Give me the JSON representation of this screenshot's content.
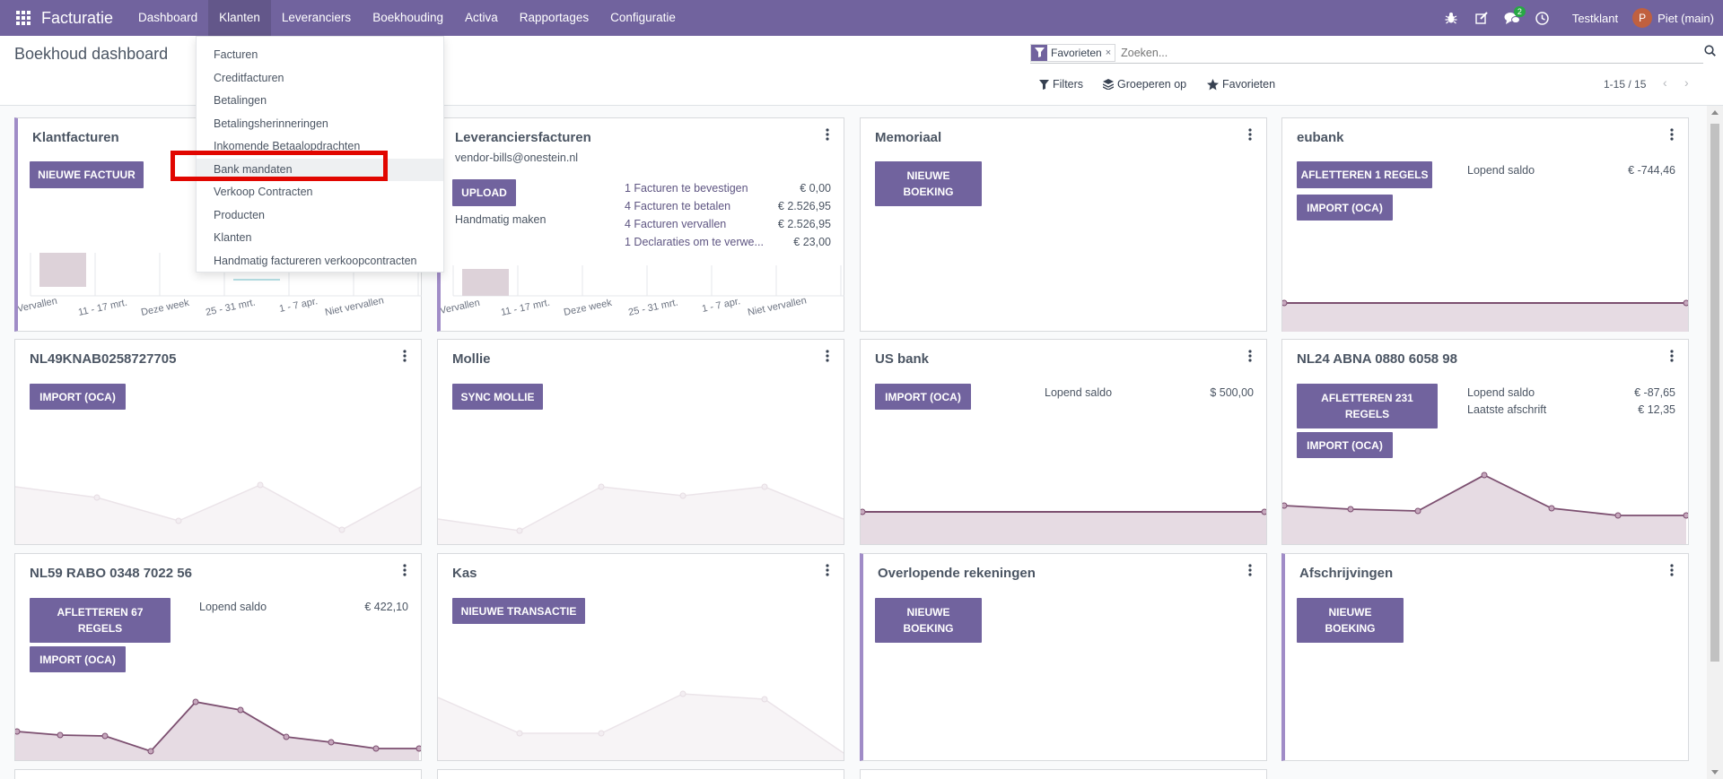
{
  "navbar": {
    "app_name": "Facturatie",
    "menu": [
      "Dashboard",
      "Klanten",
      "Leveranciers",
      "Boekhouding",
      "Activa",
      "Rapportages",
      "Configuratie"
    ],
    "active_menu": "Klanten",
    "messages_count": "2",
    "company": "Testklant",
    "user_initial": "P",
    "user_name": "Piet (main)",
    "accent_color": "#71639e"
  },
  "control_panel": {
    "title": "Boekhoud dashboard",
    "facet_label": "Favorieten",
    "search_placeholder": "Zoeken...",
    "filters": "Filters",
    "group_by": "Groeperen op",
    "favorites": "Favorieten",
    "pager": "1-15 / 15"
  },
  "klanten_menu": {
    "items": [
      "Facturen",
      "Creditfacturen",
      "Betalingen",
      "Betalingsherinneringen",
      "Inkomende Betaalopdrachten",
      "Bank mandaten",
      "Verkoop Contracten",
      "Producten",
      "Klanten",
      "Handmatig factureren verkoopcontracten"
    ],
    "highlighted": "Bank mandaten"
  },
  "cards": {
    "klantfacturen": {
      "title": "Klantfacturen",
      "button": "NIEUWE FACTUUR",
      "axis_labels": [
        "Vervallen",
        "11 - 17 mrt.",
        "Deze week",
        "25 - 31 mrt.",
        "1 - 7 apr.",
        "Niet vervallen"
      ]
    },
    "leveranciersfacturen": {
      "title": "Leveranciersfacturen",
      "email": "vendor-bills@onestein.nl",
      "button": "UPLOAD",
      "manual_link": "Handmatig maken",
      "stats": [
        {
          "label": "1 Facturen te bevestigen",
          "value": "€ 0,00"
        },
        {
          "label": "4 Facturen te betalen",
          "value": "€ 2.526,95"
        },
        {
          "label": "4 Facturen vervallen",
          "value": "€ 2.526,95"
        },
        {
          "label": "1 Declaraties om te verwe...",
          "value": "€ 23,00"
        }
      ],
      "axis_labels": [
        "Vervallen",
        "11 - 17 mrt.",
        "Deze week",
        "25 - 31 mrt.",
        "1 - 7 apr.",
        "Niet vervallen"
      ]
    },
    "memoriaal": {
      "title": "Memoriaal",
      "button": "NIEUWE BOEKING"
    },
    "eubank": {
      "title": "eubank",
      "button1": "AFLETTEREN 1 REGELS",
      "button2": "IMPORT (OCA)",
      "balance_label": "Lopend saldo",
      "balance": "€ -744,46"
    },
    "nl49": {
      "title": "NL49KNAB0258727705",
      "button": "IMPORT (OCA)"
    },
    "mollie": {
      "title": "Mollie",
      "button": "SYNC MOLLIE"
    },
    "usbank": {
      "title": "US bank",
      "button": "IMPORT (OCA)",
      "balance_label": "Lopend saldo",
      "balance": "$ 500,00"
    },
    "nl24": {
      "title": "NL24 ABNA 0880 6058 98",
      "button1": "AFLETTEREN 231 REGELS",
      "button2": "IMPORT (OCA)",
      "balance_label": "Lopend saldo",
      "balance": "€ -87,65",
      "statement_label": "Laatste afschrift",
      "statement": "€ 12,35"
    },
    "nl59": {
      "title": "NL59 RABO 0348 7022 56",
      "button1": "AFLETTEREN 67 REGELS",
      "button2": "IMPORT (OCA)",
      "balance_label": "Lopend saldo",
      "balance": "€ 422,10"
    },
    "kas": {
      "title": "Kas",
      "button": "NIEUWE TRANSACTIE"
    },
    "overlopende": {
      "title": "Overlopende rekeningen",
      "button": "NIEUWE BOEKING"
    },
    "afschrijvingen": {
      "title": "Afschrijvingen",
      "button": "NIEUWE BOEKING"
    }
  }
}
